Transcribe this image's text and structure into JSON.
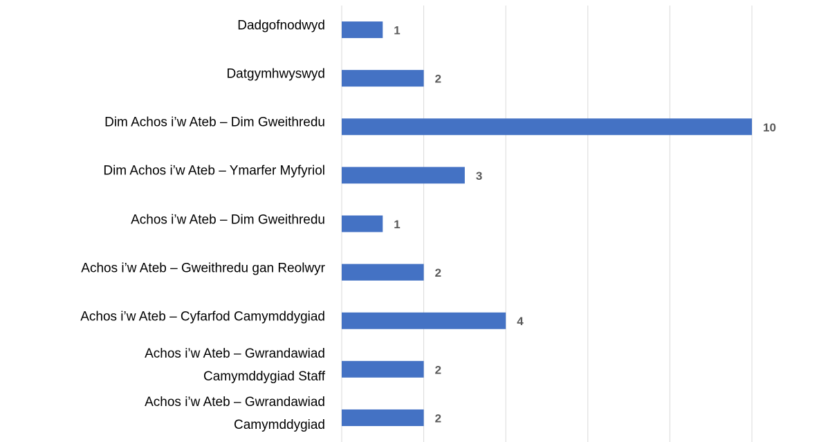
{
  "chart_data": {
    "type": "bar",
    "orientation": "horizontal",
    "categories": [
      "Dadgofnodwyd",
      "Datgymhwyswyd",
      "Dim Achos i’w Ateb – Dim Gweithredu",
      "Dim Achos i’w Ateb – Ymarfer Myfyriol",
      "Achos i’w Ateb – Dim Gweithredu",
      "Achos i’w Ateb – Gweithredu gan Reolwyr",
      "Achos i’w Ateb – Cyfarfod Camymddygiad",
      "Achos i’w Ateb – Gwrandawiad\nCamymddygiad Staff",
      "Achos i’w Ateb – Gwrandawiad\nCamymddygiad"
    ],
    "values": [
      1,
      2,
      10,
      3,
      1,
      2,
      4,
      2,
      2
    ],
    "color": "#4472c4",
    "xlim": [
      0,
      10
    ],
    "xticks": [
      0,
      2,
      4,
      6,
      8,
      10
    ],
    "grid": true
  }
}
